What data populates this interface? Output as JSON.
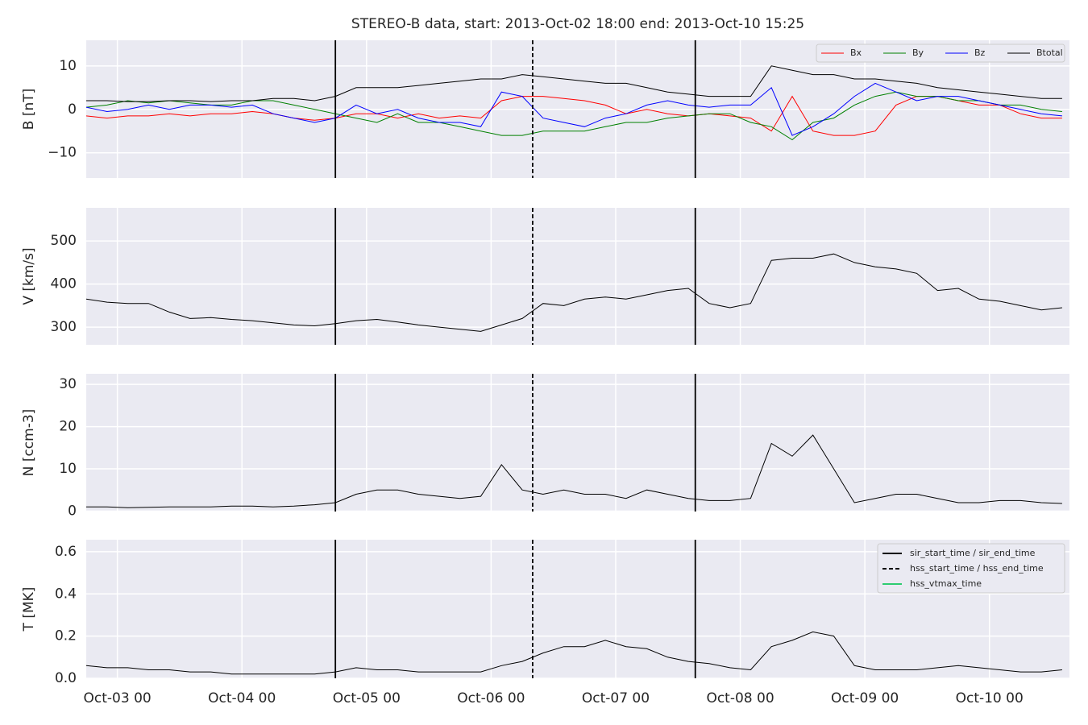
{
  "chart_data": [
    {
      "type": "line",
      "title": "STEREO-B data, start: 2013-Oct-02 18:00  end: 2013-Oct-10 15:25",
      "ylabel": "B [nT]",
      "x": [
        "2013-10-02 18:00",
        "2013-10-02 22:00",
        "2013-10-03 02:00",
        "2013-10-03 06:00",
        "2013-10-03 10:00",
        "2013-10-03 14:00",
        "2013-10-03 18:00",
        "2013-10-03 22:00",
        "2013-10-04 02:00",
        "2013-10-04 06:00",
        "2013-10-04 10:00",
        "2013-10-04 14:00",
        "2013-10-04 18:00",
        "2013-10-04 22:00",
        "2013-10-05 02:00",
        "2013-10-05 06:00",
        "2013-10-05 10:00",
        "2013-10-05 14:00",
        "2013-10-05 18:00",
        "2013-10-05 22:00",
        "2013-10-06 02:00",
        "2013-10-06 06:00",
        "2013-10-06 10:00",
        "2013-10-06 14:00",
        "2013-10-06 18:00",
        "2013-10-06 22:00",
        "2013-10-07 02:00",
        "2013-10-07 06:00",
        "2013-10-07 10:00",
        "2013-10-07 14:00",
        "2013-10-07 18:00",
        "2013-10-07 22:00",
        "2013-10-08 02:00",
        "2013-10-08 06:00",
        "2013-10-08 10:00",
        "2013-10-08 14:00",
        "2013-10-08 18:00",
        "2013-10-08 22:00",
        "2013-10-09 02:00",
        "2013-10-09 06:00",
        "2013-10-09 10:00",
        "2013-10-09 14:00",
        "2013-10-09 18:00",
        "2013-10-09 22:00",
        "2013-10-10 02:00",
        "2013-10-10 06:00",
        "2013-10-10 10:00",
        "2013-10-10 14:00"
      ],
      "series": [
        {
          "name": "Bx",
          "color": "#ff0000",
          "values": [
            -1.5,
            -2,
            -1.5,
            -1.5,
            -1,
            -1.5,
            -1,
            -1,
            -0.5,
            -1,
            -2,
            -2.5,
            -2,
            -1,
            -1,
            -2,
            -1,
            -2,
            -1.5,
            -2,
            2,
            3,
            3,
            2.5,
            2,
            1,
            -1,
            0,
            -1,
            -1.5,
            -1,
            -1.5,
            -2,
            -5,
            3,
            -5,
            -6,
            -6,
            -5,
            1,
            3,
            3,
            2,
            1,
            1,
            -1,
            -2,
            -2
          ]
        },
        {
          "name": "By",
          "color": "#008000",
          "values": [
            0.5,
            1,
            2,
            1.5,
            2,
            1.5,
            1,
            1,
            2,
            2,
            1,
            0,
            -1,
            -2,
            -3,
            -1,
            -3,
            -3,
            -4,
            -5,
            -6,
            -6,
            -5,
            -5,
            -5,
            -4,
            -3,
            -3,
            -2,
            -1.5,
            -1,
            -1,
            -3,
            -4,
            -7,
            -3,
            -2,
            1,
            3,
            4,
            3,
            3,
            2,
            2,
            1,
            1,
            0,
            -0.5
          ]
        },
        {
          "name": "Bz",
          "color": "#0000ff",
          "values": [
            0.5,
            -0.5,
            0,
            1,
            0,
            1,
            1,
            0.5,
            1,
            -1,
            -2,
            -3,
            -2,
            1,
            -1,
            0,
            -2,
            -3,
            -3,
            -4,
            4,
            3,
            -2,
            -3,
            -4,
            -2,
            -1,
            1,
            2,
            1,
            0.5,
            1,
            1,
            5,
            -6,
            -4,
            -1,
            3,
            6,
            4,
            2,
            3,
            3,
            2,
            1,
            0,
            -1,
            -1.5
          ]
        },
        {
          "name": "Btotal",
          "color": "#000000",
          "values": [
            2,
            2,
            1.8,
            1.8,
            2,
            2,
            1.8,
            2,
            2,
            2.5,
            2.5,
            2,
            3,
            5,
            5,
            5,
            5.5,
            6,
            6.5,
            7,
            7,
            8,
            7.5,
            7,
            6.5,
            6,
            6,
            5,
            4,
            3.5,
            3,
            3,
            3,
            10,
            9,
            8,
            8,
            7,
            7,
            6.5,
            6,
            5,
            4.5,
            4,
            3.5,
            3,
            2.5,
            2.5
          ]
        }
      ],
      "xlim": [
        "2013-10-02 18:00",
        "2013-10-10 15:25"
      ],
      "ylim": [
        -15.8,
        15.9
      ],
      "yticks": [
        {
          "value": -10,
          "label": "−10"
        },
        0,
        10
      ],
      "grid": true,
      "legend": "upper right"
    },
    {
      "type": "line",
      "ylabel": "V [km/s]",
      "x": [
        "2013-10-02 18:00",
        "2013-10-02 22:00",
        "2013-10-03 02:00",
        "2013-10-03 06:00",
        "2013-10-03 10:00",
        "2013-10-03 14:00",
        "2013-10-03 18:00",
        "2013-10-03 22:00",
        "2013-10-04 02:00",
        "2013-10-04 06:00",
        "2013-10-04 10:00",
        "2013-10-04 14:00",
        "2013-10-04 18:00",
        "2013-10-04 22:00",
        "2013-10-05 02:00",
        "2013-10-05 06:00",
        "2013-10-05 10:00",
        "2013-10-05 14:00",
        "2013-10-05 18:00",
        "2013-10-05 22:00",
        "2013-10-06 02:00",
        "2013-10-06 06:00",
        "2013-10-06 10:00",
        "2013-10-06 14:00",
        "2013-10-06 18:00",
        "2013-10-06 22:00",
        "2013-10-07 02:00",
        "2013-10-07 06:00",
        "2013-10-07 10:00",
        "2013-10-07 14:00",
        "2013-10-07 18:00",
        "2013-10-07 22:00",
        "2013-10-08 02:00",
        "2013-10-08 06:00",
        "2013-10-08 10:00",
        "2013-10-08 14:00",
        "2013-10-08 18:00",
        "2013-10-08 22:00",
        "2013-10-09 02:00",
        "2013-10-09 06:00",
        "2013-10-09 10:00",
        "2013-10-09 14:00",
        "2013-10-09 18:00",
        "2013-10-09 22:00",
        "2013-10-10 02:00",
        "2013-10-10 06:00",
        "2013-10-10 10:00",
        "2013-10-10 14:00"
      ],
      "series": [
        {
          "color": "#000000",
          "values": [
            365,
            358,
            355,
            355,
            335,
            320,
            322,
            318,
            315,
            310,
            305,
            303,
            308,
            315,
            318,
            312,
            305,
            300,
            295,
            290,
            305,
            320,
            355,
            350,
            365,
            370,
            365,
            375,
            385,
            390,
            355,
            345,
            355,
            455,
            460,
            460,
            470,
            450,
            440,
            435,
            425,
            385,
            390,
            365,
            360,
            350,
            340,
            345
          ]
        }
      ],
      "xlim": [
        "2013-10-02 18:00",
        "2013-10-10 15:25"
      ],
      "ylim": [
        259,
        577
      ],
      "yticks": [
        300,
        400,
        500
      ],
      "grid": true
    },
    {
      "type": "line",
      "ylabel": "N [ccm-3]",
      "x": [
        "2013-10-02 18:00",
        "2013-10-02 22:00",
        "2013-10-03 02:00",
        "2013-10-03 06:00",
        "2013-10-03 10:00",
        "2013-10-03 14:00",
        "2013-10-03 18:00",
        "2013-10-03 22:00",
        "2013-10-04 02:00",
        "2013-10-04 06:00",
        "2013-10-04 10:00",
        "2013-10-04 14:00",
        "2013-10-04 18:00",
        "2013-10-04 22:00",
        "2013-10-05 02:00",
        "2013-10-05 06:00",
        "2013-10-05 10:00",
        "2013-10-05 14:00",
        "2013-10-05 18:00",
        "2013-10-05 22:00",
        "2013-10-06 02:00",
        "2013-10-06 06:00",
        "2013-10-06 10:00",
        "2013-10-06 14:00",
        "2013-10-06 18:00",
        "2013-10-06 22:00",
        "2013-10-07 02:00",
        "2013-10-07 06:00",
        "2013-10-07 10:00",
        "2013-10-07 14:00",
        "2013-10-07 18:00",
        "2013-10-07 22:00",
        "2013-10-08 02:00",
        "2013-10-08 06:00",
        "2013-10-08 10:00",
        "2013-10-08 14:00",
        "2013-10-08 18:00",
        "2013-10-08 22:00",
        "2013-10-09 02:00",
        "2013-10-09 06:00",
        "2013-10-09 10:00",
        "2013-10-09 14:00",
        "2013-10-09 18:00",
        "2013-10-09 22:00",
        "2013-10-10 02:00",
        "2013-10-10 06:00",
        "2013-10-10 10:00",
        "2013-10-10 14:00"
      ],
      "series": [
        {
          "color": "#000000",
          "values": [
            1,
            1,
            0.8,
            0.9,
            1,
            1,
            1,
            1.2,
            1.2,
            1,
            1.2,
            1.5,
            2,
            4,
            5,
            5,
            4,
            3.5,
            3,
            3.5,
            11,
            5,
            4,
            5,
            4,
            4,
            3,
            5,
            4,
            3,
            2.5,
            2.5,
            3,
            16,
            13,
            18,
            10,
            2,
            3,
            4,
            4,
            3,
            2,
            2,
            2.5,
            2.5,
            2,
            1.8
          ]
        }
      ],
      "xlim": [
        "2013-10-02 18:00",
        "2013-10-10 15:25"
      ],
      "ylim": [
        -0.1,
        32.5
      ],
      "yticks": [
        0,
        10,
        20,
        30
      ],
      "grid": true
    },
    {
      "type": "line",
      "ylabel": "T [MK]",
      "x": [
        "2013-10-02 18:00",
        "2013-10-02 22:00",
        "2013-10-03 02:00",
        "2013-10-03 06:00",
        "2013-10-03 10:00",
        "2013-10-03 14:00",
        "2013-10-03 18:00",
        "2013-10-03 22:00",
        "2013-10-04 02:00",
        "2013-10-04 06:00",
        "2013-10-04 10:00",
        "2013-10-04 14:00",
        "2013-10-04 18:00",
        "2013-10-04 22:00",
        "2013-10-05 02:00",
        "2013-10-05 06:00",
        "2013-10-05 10:00",
        "2013-10-05 14:00",
        "2013-10-05 18:00",
        "2013-10-05 22:00",
        "2013-10-06 02:00",
        "2013-10-06 06:00",
        "2013-10-06 10:00",
        "2013-10-06 14:00",
        "2013-10-06 18:00",
        "2013-10-06 22:00",
        "2013-10-07 02:00",
        "2013-10-07 06:00",
        "2013-10-07 10:00",
        "2013-10-07 14:00",
        "2013-10-07 18:00",
        "2013-10-07 22:00",
        "2013-10-08 02:00",
        "2013-10-08 06:00",
        "2013-10-08 10:00",
        "2013-10-08 14:00",
        "2013-10-08 18:00",
        "2013-10-08 22:00",
        "2013-10-09 02:00",
        "2013-10-09 06:00",
        "2013-10-09 10:00",
        "2013-10-09 14:00",
        "2013-10-09 18:00",
        "2013-10-09 22:00",
        "2013-10-10 02:00",
        "2013-10-10 06:00",
        "2013-10-10 10:00",
        "2013-10-10 14:00"
      ],
      "series": [
        {
          "color": "#000000",
          "values": [
            0.06,
            0.05,
            0.05,
            0.04,
            0.04,
            0.03,
            0.03,
            0.02,
            0.02,
            0.02,
            0.02,
            0.02,
            0.03,
            0.05,
            0.04,
            0.04,
            0.03,
            0.03,
            0.03,
            0.03,
            0.06,
            0.08,
            0.12,
            0.15,
            0.15,
            0.18,
            0.15,
            0.14,
            0.1,
            0.08,
            0.07,
            0.05,
            0.04,
            0.15,
            0.18,
            0.22,
            0.2,
            0.06,
            0.04,
            0.04,
            0.04,
            0.05,
            0.06,
            0.05,
            0.04,
            0.03,
            0.03,
            0.04
          ]
        }
      ],
      "xlim": [
        "2013-10-02 18:00",
        "2013-10-10 15:25"
      ],
      "ylim": [
        0,
        0.657
      ],
      "yticks": [
        {
          "value": 0,
          "label": "0.0"
        },
        0.2,
        0.4,
        0.6
      ],
      "grid": true,
      "xticks": [
        {
          "value": "2013-10-03 00:00",
          "label": "Oct-03 00"
        },
        {
          "value": "2013-10-04 00:00",
          "label": "Oct-04 00"
        },
        {
          "value": "2013-10-05 00:00",
          "label": "Oct-05 00"
        },
        {
          "value": "2013-10-06 00:00",
          "label": "Oct-06 00"
        },
        {
          "value": "2013-10-07 00:00",
          "label": "Oct-07 00"
        },
        {
          "value": "2013-10-08 00:00",
          "label": "Oct-08 00"
        },
        {
          "value": "2013-10-09 00:00",
          "label": "Oct-09 00"
        },
        {
          "value": "2013-10-10 00:00",
          "label": "Oct-10 00"
        }
      ],
      "events": [
        {
          "label": "sir_start_time / sir_end_time",
          "color": "#000000",
          "dashed": false,
          "times": [
            "2013-10-04 18:00",
            "2013-10-07 15:20"
          ]
        },
        {
          "label": "hss_start_time / hss_end_time",
          "color": "#000000",
          "dashed": true,
          "times": [
            "2013-10-06 08:00"
          ]
        },
        {
          "label": "hss_vtmax_time",
          "color": "#2ecc71",
          "dashed": false
        }
      ],
      "legend": "upper right"
    }
  ]
}
